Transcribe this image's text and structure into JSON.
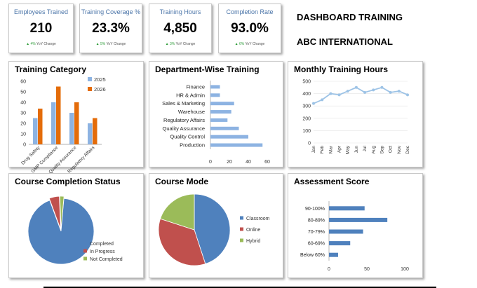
{
  "kpis": [
    {
      "label": "Employees Trained",
      "value": "210",
      "change": "▲ 4% YoY Change"
    },
    {
      "label": "Training Coverage %",
      "value": "23.3%",
      "change": "▲ 5% YoY Change"
    },
    {
      "label": "Training Hours",
      "value": "4,850",
      "change": "▲ 3% YoY Change"
    },
    {
      "label": "Completion Rate",
      "value": "93.0%",
      "change": "▲ 6% YoY Change"
    }
  ],
  "header": {
    "title": "DASHBOARD TRAINING",
    "subtitle": "ABC INTERNATIONAL"
  },
  "colors": {
    "blue": "#4f81bd",
    "orange": "#e46c0a",
    "lightblue": "#8db3e2",
    "red": "#c0504d",
    "green": "#9bbb59",
    "line": "#9dc3e6"
  },
  "chart_data": [
    {
      "type": "bar",
      "title": "Training Category",
      "categories": [
        "Drug Safety",
        "GMP Compliance",
        "Quality Assurance",
        "Regulatory Affairs"
      ],
      "series": [
        {
          "name": "2025",
          "values": [
            25,
            40,
            30,
            20
          ]
        },
        {
          "name": "2026",
          "values": [
            34,
            55,
            40,
            25
          ]
        }
      ],
      "ylim": [
        0,
        60
      ],
      "yticks": [
        "0",
        "10",
        "20",
        "30",
        "40",
        "50",
        "60"
      ],
      "legend": "top-right"
    },
    {
      "type": "bar",
      "orientation": "horizontal",
      "title": "Department-Wise Training",
      "categories": [
        "Finance",
        "HR & Admin",
        "Sales & Marketing",
        "Warehouse",
        "Regulatory Affairs",
        "Quality Assurance",
        "Quality Control",
        "Production"
      ],
      "values": [
        10,
        10,
        25,
        22,
        18,
        30,
        40,
        55
      ],
      "xlim": [
        0,
        60
      ],
      "xticks": [
        "0",
        "20",
        "40",
        "60"
      ]
    },
    {
      "type": "line",
      "title": "Monthly Training Hours",
      "categories": [
        "Jan",
        "Feb",
        "Mar",
        "Apr",
        "May",
        "Jun",
        "Jul",
        "Aug",
        "Sep",
        "Oct",
        "Nov",
        "Dec"
      ],
      "values": [
        320,
        350,
        400,
        390,
        420,
        450,
        410,
        430,
        450,
        410,
        420,
        390
      ],
      "ylim": [
        0,
        500
      ],
      "yticks": [
        "0",
        "100",
        "200",
        "300",
        "400",
        "500"
      ]
    },
    {
      "type": "pie",
      "title": "Course Completion Status",
      "labels": [
        "Completed",
        "In Progress",
        "Not Completed"
      ],
      "values": [
        93,
        5,
        2
      ]
    },
    {
      "type": "pie",
      "title": "Course Mode",
      "labels": [
        "Classroom",
        "Online",
        "Hybrid"
      ],
      "values": [
        45,
        35,
        20
      ]
    },
    {
      "type": "bar",
      "orientation": "horizontal",
      "title": "Assessment Score",
      "categories": [
        "90-100%",
        "80-89%",
        "70-79%",
        "60-69%",
        "Below 60%"
      ],
      "values": [
        47,
        77,
        45,
        28,
        12
      ],
      "xlim": [
        0,
        100
      ],
      "xticks": [
        "0",
        "50",
        "100"
      ]
    }
  ]
}
